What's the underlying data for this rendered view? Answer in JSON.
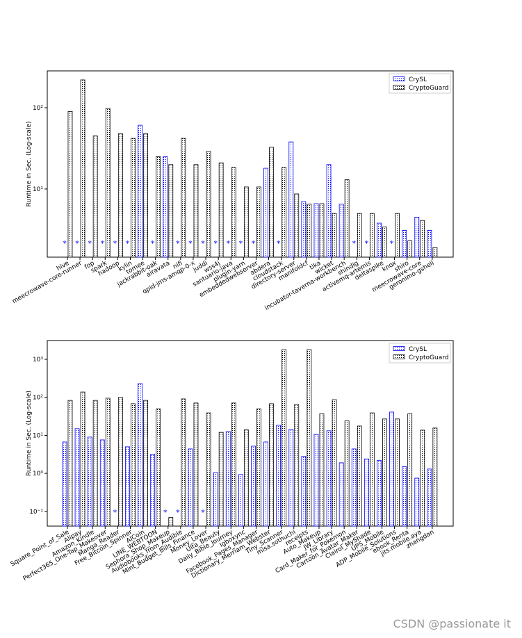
{
  "chart_data": [
    {
      "type": "bar",
      "ylabel": "Runtime in Sec. (Log-scale)",
      "log_y": true,
      "legend": "upper right",
      "missing_marker": "*",
      "categories": [
        "hive",
        "meecrowave-core-runner",
        "fop",
        "spark",
        "hadoop",
        "kylin",
        "tomee",
        "jackrabbit-oak",
        "airavata",
        "nifi",
        "qpid-jms-amqp-0-x",
        "juddi",
        "wss4j",
        "santuario-java",
        "plugin-yarn",
        "embeddedwebserver",
        "abdera",
        "cloudstack",
        "directory-server",
        "manifoldcf",
        "tika",
        "wicket",
        "incubator-taverna-workbench",
        "shindig",
        "activemq-artemis",
        "deltaspike",
        "knox",
        "shiro",
        "meecrowave-core",
        "geronimo-gshell"
      ],
      "series": [
        {
          "name": "CrySL",
          "color": "#0000ff",
          "values": [
            null,
            null,
            null,
            null,
            null,
            null,
            61,
            null,
            25,
            null,
            null,
            null,
            null,
            null,
            null,
            null,
            18,
            null,
            38,
            7.0,
            6.6,
            20,
            6.5,
            null,
            null,
            3.8,
            null,
            3.1,
            4.5,
            3.1
          ]
        },
        {
          "name": "CryptoGuard",
          "color": "#000000",
          "values": [
            90,
            220,
            45,
            98,
            48,
            42,
            48,
            25,
            20,
            42,
            20,
            29,
            21,
            18.4,
            10.6,
            10.6,
            32.6,
            18.4,
            8.7,
            6.5,
            6.6,
            5.0,
            13,
            5.0,
            5.0,
            3.4,
            5.0,
            2.3,
            4.1,
            1.9
          ]
        }
      ],
      "ylim": [
        1.45,
        284
      ],
      "yticks": [
        {
          "value": 10,
          "label": "10¹"
        },
        {
          "value": 100,
          "label": "10²"
        }
      ]
    },
    {
      "type": "bar",
      "ylabel": "Runtime in Sec. (Log-scale)",
      "log_y": true,
      "legend": "upper right",
      "missing_marker": "*",
      "categories": [
        "Square_Point_of_Sale",
        "Alipay",
        "Amazon_Kindle",
        "Perfect365_One-Tap_Makeover",
        "Manga_Reader",
        "Free_Bitcoin_Spinner",
        "AlCoin",
        "LINE_WEBTOON",
        "Sephora_Shop_Makeup",
        "Audiobooks_from_Audible",
        "Mint_Budget_Bills_Finance",
        "Money_Lover",
        "Ulta_Beauty",
        "Daily_Bible_Journey",
        "Igboxync",
        "Facebook_Pages_Manager",
        "Dictionary_Merriam_Webster",
        "Tiny_Scanner",
        "misa.sothuchi",
        "receipts",
        "Auto_Makeup",
        "JW_Library",
        "Card_Maker_for_Pokemon",
        "Cartoon_Avatar_Maker",
        "Clairol_MyShade",
        "UPS_Mobile",
        "ADP_Mobile_Solutions",
        "ebook_Renta",
        "jits.mobile.aya",
        "zhangdan"
      ],
      "series": [
        {
          "name": "CrySL",
          "color": "#0000ff",
          "values": [
            6.7,
            15,
            9.0,
            7.6,
            null,
            5.0,
            230,
            3.2,
            null,
            null,
            4.4,
            null,
            1.05,
            12.6,
            0.93,
            5.2,
            6.7,
            18.4,
            14.5,
            2.8,
            10.6,
            13.2,
            1.9,
            4.4,
            2.4,
            2.2,
            41,
            1.5,
            0.75,
            1.3
          ]
        },
        {
          "name": "CryptoGuard",
          "color": "#000000",
          "values": [
            83,
            138,
            83,
            95,
            100,
            68,
            83,
            50,
            0.069,
            91,
            71,
            39,
            12,
            71,
            14,
            50,
            68,
            1800,
            65,
            1800,
            37,
            87,
            24,
            17.6,
            39,
            27,
            27,
            37,
            13.7,
            15.6
          ]
        }
      ],
      "ylim": [
        0.041,
        3120
      ],
      "yticks": [
        {
          "value": 0.1,
          "label": "10⁻¹"
        },
        {
          "value": 1,
          "label": "10⁰"
        },
        {
          "value": 10,
          "label": "10¹"
        },
        {
          "value": 100,
          "label": "10²"
        },
        {
          "value": 1000,
          "label": "10³"
        }
      ]
    }
  ],
  "watermark": "CSDN @passionate it"
}
